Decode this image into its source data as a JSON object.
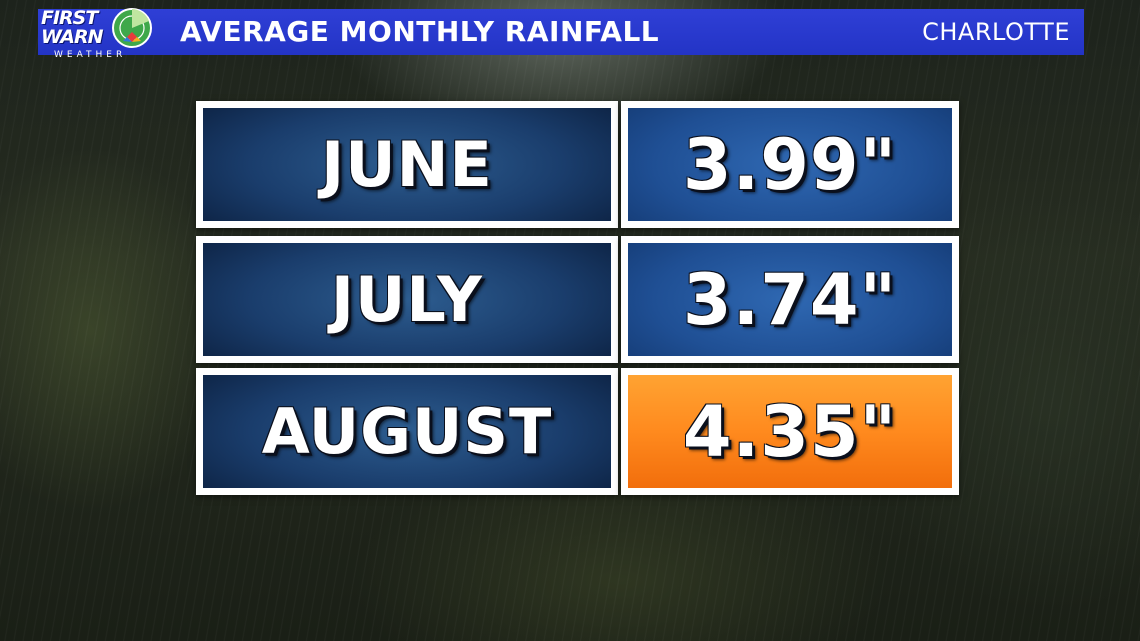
{
  "header": {
    "title": "AVERAGE MONTHLY RAINFALL",
    "location": "CHARLOTTE"
  },
  "logo": {
    "line1": "FIRST",
    "line2": "WARN",
    "line3": "WEATHER"
  },
  "chart_data": {
    "type": "table",
    "title": "AVERAGE MONTHLY RAINFALL",
    "columns": [
      "month",
      "rainfall"
    ],
    "rows": [
      {
        "month": "JUNE",
        "value": 3.99,
        "label": "3.99\"",
        "highlight": false
      },
      {
        "month": "JULY",
        "value": 3.74,
        "label": "3.74\"",
        "highlight": false
      },
      {
        "month": "AUGUST",
        "value": 4.35,
        "label": "4.35\"",
        "highlight": true
      }
    ]
  },
  "colors": {
    "header_blue": "#2334c6",
    "cell_blue": "#1f4f94",
    "month_navy": "#1a3d6c",
    "highlight_orange": "#ff8a1e",
    "border_white": "#ffffff"
  }
}
